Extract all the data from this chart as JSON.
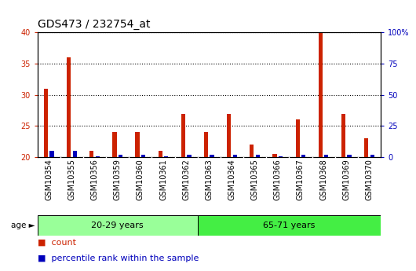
{
  "title": "GDS473 / 232754_at",
  "samples": [
    "GSM10354",
    "GSM10355",
    "GSM10356",
    "GSM10359",
    "GSM10360",
    "GSM10361",
    "GSM10362",
    "GSM10363",
    "GSM10364",
    "GSM10365",
    "GSM10366",
    "GSM10367",
    "GSM10368",
    "GSM10369",
    "GSM10370"
  ],
  "count_values": [
    31,
    36,
    21,
    24,
    24,
    21,
    27,
    24,
    27,
    22,
    20.5,
    26,
    40,
    27,
    23
  ],
  "percentile_values": [
    5,
    5,
    1,
    2,
    2,
    1,
    2,
    2,
    2,
    2,
    1,
    2,
    2,
    2,
    2
  ],
  "group1_label": "20-29 years",
  "group2_label": "65-71 years",
  "group1_count": 7,
  "group2_count": 8,
  "ylim_left": [
    20,
    40
  ],
  "ylim_right": [
    0,
    100
  ],
  "yticks_left": [
    20,
    25,
    30,
    35,
    40
  ],
  "yticks_right": [
    0,
    25,
    50,
    75,
    100
  ],
  "ytick_labels_right": [
    "0",
    "25",
    "50",
    "75",
    "100%"
  ],
  "bar_color_count": "#cc2200",
  "bar_color_pct": "#0000bb",
  "group1_bg": "#99ff99",
  "group2_bg": "#44ee44",
  "xtick_bg": "#cccccc",
  "legend_count": "count",
  "legend_pct": "percentile rank within the sample",
  "title_fontsize": 10,
  "tick_fontsize": 7,
  "label_fontsize": 8
}
